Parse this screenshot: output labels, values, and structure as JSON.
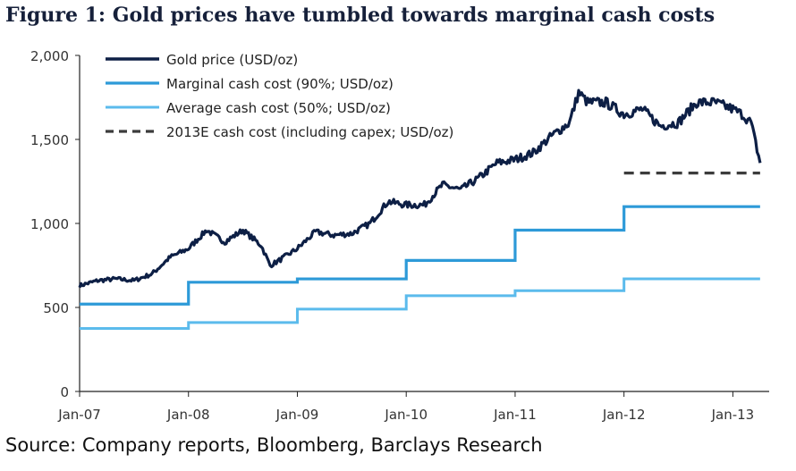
{
  "title": "Figure 1: Gold prices have tumbled towards marginal cash costs",
  "source": "Source: Company reports, Bloomberg, Barclays Research",
  "chart_data": {
    "type": "line",
    "xlabel": "",
    "ylabel": "",
    "xlim": [
      "2007-01",
      "2013-05"
    ],
    "ylim": [
      0,
      2000
    ],
    "y_ticks": [
      0,
      500,
      1000,
      1500,
      2000
    ],
    "y_tick_labels": [
      "0",
      "500",
      "1,000",
      "1,500",
      "2,000"
    ],
    "x_ticks": [
      "2007-01",
      "2008-01",
      "2009-01",
      "2010-01",
      "2011-01",
      "2012-01",
      "2013-01"
    ],
    "x_tick_labels": [
      "Jan-07",
      "Jan-08",
      "Jan-09",
      "Jan-10",
      "Jan-11",
      "Jan-12",
      "Jan-13"
    ],
    "grid": false,
    "legend_position": "top-left",
    "colors": {
      "gold": "#0d1f45",
      "marginal": "#2d9ad8",
      "average": "#5bbbec",
      "capex": "#3c3c3c"
    },
    "series": [
      {
        "name": "Gold price (USD/oz)",
        "style": "solid-thick",
        "x": [
          "2007-01",
          "2007-03",
          "2007-05",
          "2007-07",
          "2007-09",
          "2007-11",
          "2008-01",
          "2008-03",
          "2008-05",
          "2008-07",
          "2008-09",
          "2008-10",
          "2008-11",
          "2009-01",
          "2009-03",
          "2009-05",
          "2009-07",
          "2009-09",
          "2009-11",
          "2010-01",
          "2010-03",
          "2010-05",
          "2010-07",
          "2010-09",
          "2010-11",
          "2011-01",
          "2011-03",
          "2011-05",
          "2011-07",
          "2011-08",
          "2011-09",
          "2011-11",
          "2012-01",
          "2012-03",
          "2012-05",
          "2012-07",
          "2012-09",
          "2012-11",
          "2013-01",
          "2013-02",
          "2013-03",
          "2013-04"
        ],
        "y": [
          630,
          660,
          670,
          660,
          700,
          800,
          850,
          960,
          890,
          960,
          870,
          750,
          780,
          850,
          950,
          930,
          940,
          1000,
          1130,
          1110,
          1110,
          1230,
          1200,
          1270,
          1360,
          1380,
          1420,
          1520,
          1600,
          1780,
          1720,
          1720,
          1650,
          1680,
          1580,
          1600,
          1720,
          1720,
          1680,
          1650,
          1600,
          1360
        ]
      },
      {
        "name": "Marginal cash cost (90%; USD/oz)",
        "style": "step",
        "x": [
          "2007-01",
          "2008-01",
          "2009-01",
          "2010-01",
          "2011-01",
          "2012-01",
          "2013-04"
        ],
        "y": [
          520,
          650,
          670,
          780,
          960,
          1100,
          1100
        ]
      },
      {
        "name": "Average cash cost (50%; USD/oz)",
        "style": "step",
        "x": [
          "2007-01",
          "2008-01",
          "2009-01",
          "2010-01",
          "2011-01",
          "2012-01",
          "2013-04"
        ],
        "y": [
          375,
          410,
          490,
          570,
          600,
          670,
          670
        ]
      },
      {
        "name": "2013E cash cost (including capex; USD/oz)",
        "style": "dashed",
        "x": [
          "2012-01",
          "2013-04"
        ],
        "y": [
          1300,
          1300
        ]
      }
    ]
  }
}
